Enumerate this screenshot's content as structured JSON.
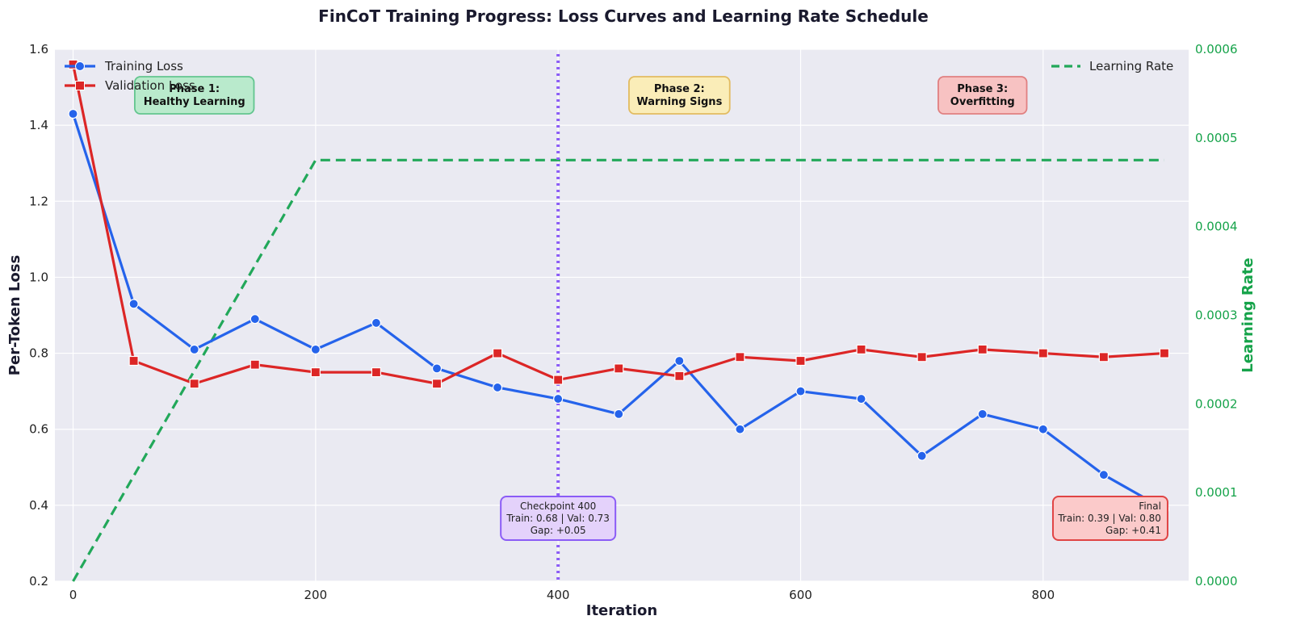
{
  "chart_data": {
    "type": "line",
    "title": "FinCoT Training Progress: Loss Curves and Learning Rate Schedule",
    "xlabel": "Iteration",
    "ylabel": "Per-Token Loss",
    "y2label": "Learning Rate",
    "xlim": [
      -15,
      920
    ],
    "ylim": [
      0.2,
      1.6
    ],
    "y2lim": [
      0.0,
      0.0006
    ],
    "xticks": [
      0,
      200,
      400,
      600,
      800
    ],
    "yticks": [
      0.2,
      0.4,
      0.6,
      0.8,
      1.0,
      1.2,
      1.4,
      1.6
    ],
    "ytick_labels": [
      "0.2",
      "0.4",
      "0.6",
      "0.8",
      "1.0",
      "1.2",
      "1.4",
      "1.6"
    ],
    "y2ticks": [
      0.0,
      0.0001,
      0.0002,
      0.0003,
      0.0004,
      0.0005,
      0.0006
    ],
    "y2tick_labels": [
      "0.0000",
      "0.0001",
      "0.0002",
      "0.0003",
      "0.0004",
      "0.0005",
      "0.0006"
    ],
    "grid": true,
    "series": [
      {
        "name": "Training Loss",
        "color": "#2563eb",
        "marker": "circle",
        "axis": "left",
        "x": [
          0,
          50,
          100,
          150,
          200,
          250,
          300,
          350,
          400,
          450,
          500,
          550,
          600,
          650,
          700,
          750,
          800,
          850,
          900
        ],
        "values": [
          1.43,
          0.93,
          0.81,
          0.89,
          0.81,
          0.88,
          0.76,
          0.71,
          0.68,
          0.64,
          0.78,
          0.6,
          0.7,
          0.68,
          0.53,
          0.64,
          0.6,
          0.48,
          0.39
        ]
      },
      {
        "name": "Validation Loss",
        "color": "#dc2626",
        "marker": "square",
        "axis": "left",
        "x": [
          0,
          50,
          100,
          150,
          200,
          250,
          300,
          350,
          400,
          450,
          500,
          550,
          600,
          650,
          700,
          750,
          800,
          850,
          900
        ],
        "values": [
          1.56,
          0.78,
          0.72,
          0.77,
          0.75,
          0.75,
          0.72,
          0.8,
          0.73,
          0.76,
          0.74,
          0.79,
          0.78,
          0.81,
          0.79,
          0.81,
          0.8,
          0.79,
          0.8
        ]
      },
      {
        "name": "Learning Rate",
        "color": "#22a85a",
        "style": "dashed",
        "axis": "right",
        "x": [
          0,
          200,
          900
        ],
        "values": [
          0.0,
          0.000475,
          0.000475
        ]
      }
    ],
    "legend_left": [
      "Training Loss",
      "Validation Loss"
    ],
    "legend_right": [
      "Learning Rate"
    ],
    "legend_placement": "top-left and top-right",
    "checkpoint_x": 400,
    "phases": [
      {
        "lines": [
          "Phase 1:",
          "Healthy Learning"
        ],
        "x": 100,
        "fill": "#b7ebcb",
        "stroke": "#5cc48a"
      },
      {
        "lines": [
          "Phase 2:",
          "Warning Signs"
        ],
        "x": 500,
        "fill": "#fbeeb5",
        "stroke": "#e2b95a"
      },
      {
        "lines": [
          "Phase 3:",
          "Overfitting"
        ],
        "x": 750,
        "fill": "#f8c0c0",
        "stroke": "#e07b7b"
      }
    ],
    "annotations": [
      {
        "lines": [
          "Checkpoint 400",
          "Train: 0.68 | Val: 0.73",
          "Gap: +0.05"
        ],
        "x": 400,
        "fill": "#e4d2fb",
        "stroke": "#8b5cf6",
        "align": "middle"
      },
      {
        "lines": [
          "Final",
          "Train: 0.39 | Val: 0.80",
          "Gap: +0.41"
        ],
        "x": 900,
        "fill": "#fbcaca",
        "stroke": "#e04444",
        "align": "end"
      }
    ]
  }
}
